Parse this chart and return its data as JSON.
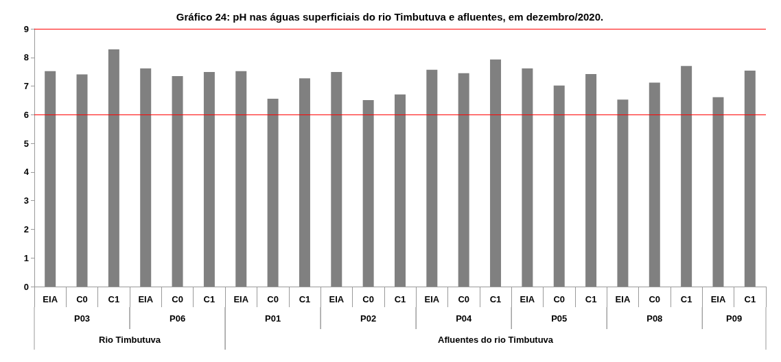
{
  "chart_data": {
    "type": "bar",
    "title": "Gráfico 24: pH nas águas superficiais do rio Timbutuva e afluentes, em dezembro/2020.",
    "categories": [
      "EIA",
      "C0",
      "C1",
      "EIA",
      "C0",
      "C1",
      "EIA",
      "C0",
      "C1",
      "EIA",
      "C0",
      "C1",
      "EIA",
      "C0",
      "C1",
      "EIA",
      "C0",
      "C1",
      "EIA",
      "C0",
      "C1",
      "EIA",
      "C1"
    ],
    "values": [
      7.52,
      7.41,
      8.28,
      7.62,
      7.35,
      7.49,
      7.52,
      6.56,
      7.27,
      7.49,
      6.51,
      6.71,
      7.57,
      7.45,
      7.93,
      7.62,
      7.02,
      7.42,
      6.53,
      7.12,
      7.7,
      6.61,
      7.54
    ],
    "color": "#808080",
    "ylim": [
      0,
      9
    ],
    "yticks": [
      0,
      1,
      2,
      3,
      4,
      5,
      6,
      7,
      8,
      9
    ],
    "grid": false,
    "ref_lines": [
      {
        "axis": "y",
        "value": 6,
        "color": "#ff0000"
      },
      {
        "axis": "y",
        "value": 9,
        "color": "#ff0000"
      }
    ],
    "annotations": [
      "P03",
      "P06",
      "P01",
      "P02",
      "P04",
      "P05",
      "P08",
      "P09",
      "Rio Timbutuva",
      "Afluentes do rio Timbutuva"
    ]
  }
}
